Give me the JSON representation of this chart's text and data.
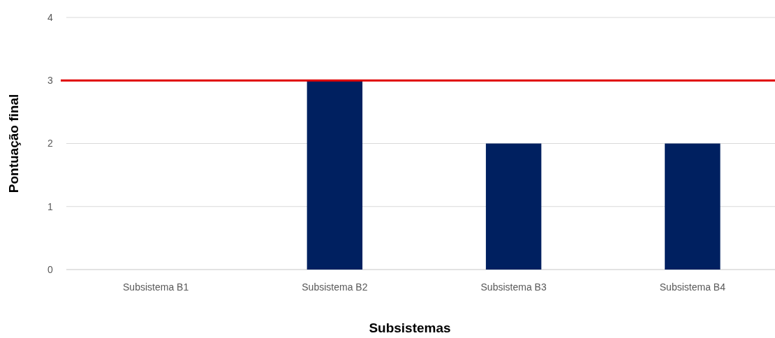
{
  "chart_data": {
    "type": "bar",
    "xlabel": "Subsistemas",
    "ylabel": "Pontuação final",
    "categories": [
      "Subsistema B1",
      "Subsistema B2",
      "Subsistema B3",
      "Subsistema B4"
    ],
    "values": [
      0,
      3,
      2,
      2
    ],
    "color": "#002060",
    "ylim": [
      0,
      4
    ],
    "yticks": [
      0,
      1,
      2,
      3,
      4
    ],
    "grid": "y",
    "ref_lines": [
      {
        "axis": "y",
        "value": 3,
        "color": "#e00000"
      }
    ]
  }
}
